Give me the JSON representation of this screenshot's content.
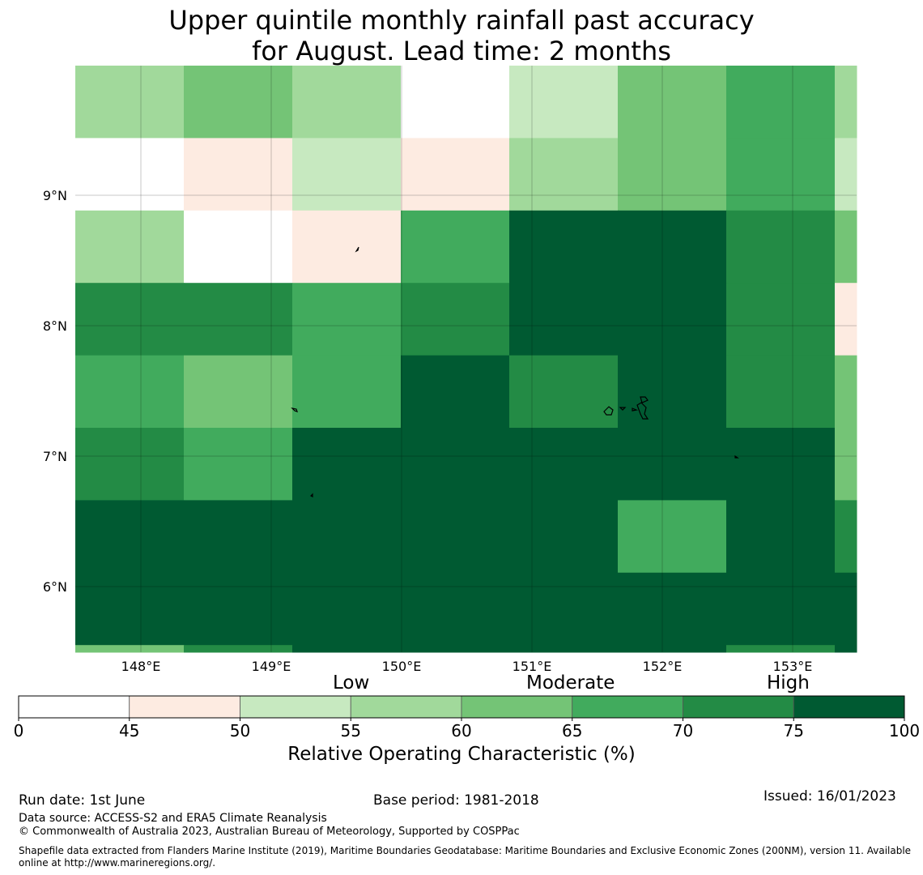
{
  "title": {
    "line1": "Upper quintile monthly rainfall past accuracy",
    "line2": "for August. Lead time: 2 months"
  },
  "map": {
    "lon_range": [
      147.5,
      153.5
    ],
    "lat_range": [
      5.5,
      10.0
    ],
    "cell_size_deg": 0.833,
    "x_ticks": [
      "148°E",
      "149°E",
      "150°E",
      "151°E",
      "152°E",
      "153°E"
    ],
    "y_ticks": [
      "9°N",
      "8°N",
      "7°N",
      "6°N"
    ],
    "grid": true,
    "grid_values": [
      [
        57,
        62,
        57,
        40,
        52,
        62,
        67,
        57
      ],
      [
        40,
        47,
        52,
        47,
        57,
        62,
        67,
        52
      ],
      [
        57,
        40,
        47,
        67,
        80,
        80,
        72,
        62
      ],
      [
        72,
        72,
        67,
        72,
        80,
        80,
        72,
        47
      ],
      [
        67,
        62,
        67,
        80,
        72,
        80,
        72,
        62
      ],
      [
        72,
        67,
        80,
        80,
        80,
        80,
        80,
        62
      ],
      [
        80,
        80,
        80,
        80,
        80,
        67,
        80,
        72
      ],
      [
        80,
        80,
        80,
        80,
        80,
        80,
        80,
        80
      ],
      [
        62,
        72,
        80,
        80,
        80,
        80,
        72,
        80
      ]
    ]
  },
  "colorbar": {
    "category_labels": [
      "Low",
      "Moderate",
      "High"
    ],
    "boundaries": [
      0,
      45,
      50,
      55,
      60,
      65,
      70,
      75,
      100
    ],
    "tick_labels": [
      "0",
      "45",
      "50",
      "55",
      "60",
      "65",
      "70",
      "75",
      "100"
    ],
    "colors": [
      "#ffffff",
      "#fdebe1",
      "#c7e9c0",
      "#a1d99b",
      "#74c476",
      "#41ab5d",
      "#238b45",
      "#005a32"
    ],
    "label": "Relative Operating Characteristic (%)"
  },
  "footer": {
    "run_date": "Run date: 1st June",
    "base_period": "Base period: 1981-2018",
    "issued": "Issued: 16/01/2023",
    "data_source": "Data source: ACCESS-S2 and ERA5 Climate Reanalysis",
    "copyright": "© Commonwealth of Australia 2023, Australian Bureau of Meteorology, Supported by COSPPac",
    "shapefile": "Shapefile data extracted from Flanders Marine Institute (2019), Maritime Boundaries Geodatabase: Maritime Boundaries and Exclusive Economic Zones (200NM), version 11. Available online at http://www.marineregions.org/."
  }
}
